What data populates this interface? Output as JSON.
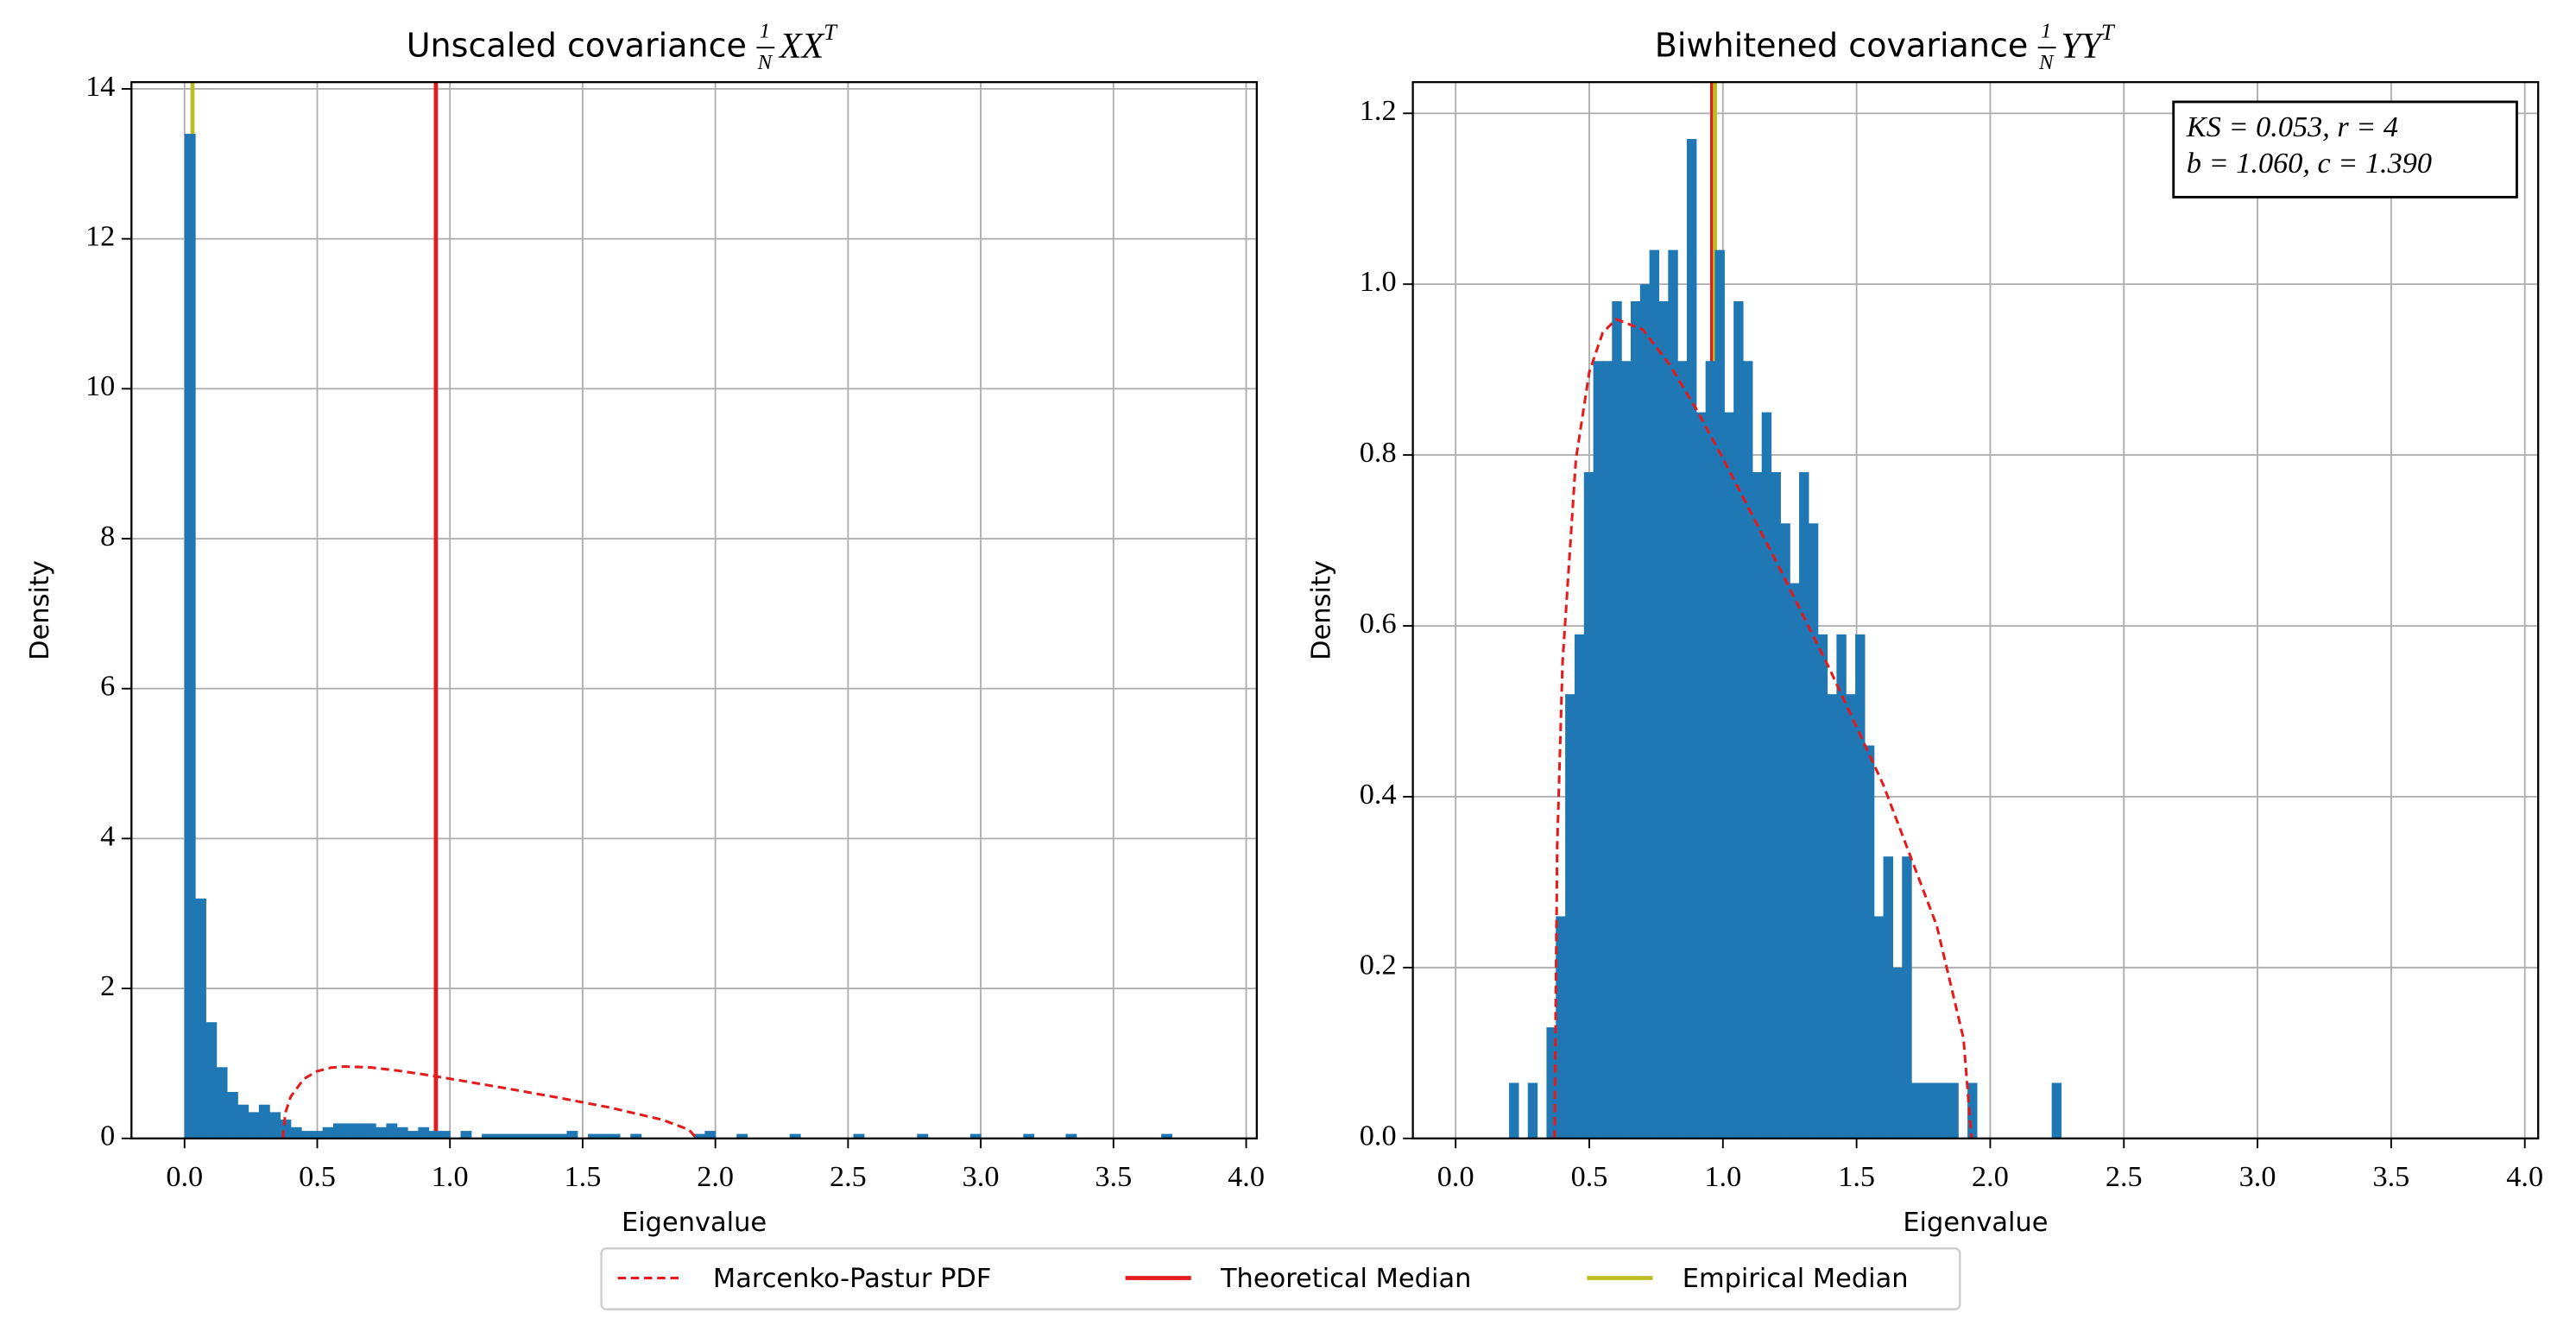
{
  "chart_data": [
    {
      "type": "histogram",
      "title": "Unscaled covariance",
      "title_math": {
        "num": "1",
        "den": "N",
        "expr": "XX",
        "sup": "T"
      },
      "x_label": "Eigenvalue",
      "y_label": "Density",
      "color": "#1f77b4",
      "xlim": [
        -0.2,
        4.04
      ],
      "ylim": [
        0,
        14.09
      ],
      "xticks": [
        {
          "value": 0,
          "label": "0.0"
        },
        0.5,
        {
          "value": 1,
          "label": "1.0"
        },
        1.5,
        {
          "value": 2,
          "label": "2.0"
        },
        2.5,
        {
          "value": 3,
          "label": "3.0"
        },
        3.5,
        {
          "value": 4,
          "label": "4.0"
        }
      ],
      "yticks": [
        0,
        2,
        4,
        6,
        8,
        10,
        12,
        14
      ],
      "grid": true,
      "bins": [
        0,
        0.04,
        0.08,
        0.12,
        0.16,
        0.2,
        0.24,
        0.28,
        0.32,
        0.36,
        0.4,
        0.44,
        0.48,
        0.52,
        0.56,
        0.6,
        0.64,
        0.68,
        0.72,
        0.76,
        0.8,
        0.84,
        0.88,
        0.92,
        0.96,
        1,
        1.04,
        1.08,
        1.12,
        1.16,
        1.2,
        1.24,
        1.28,
        1.32,
        1.36,
        1.4,
        1.44,
        1.48,
        1.52,
        1.56,
        1.6,
        1.64,
        1.68,
        1.72,
        1.76,
        1.8,
        1.84,
        1.88,
        1.92,
        1.96,
        2,
        2.04,
        2.08,
        2.12,
        2.16,
        2.2,
        2.24,
        2.28,
        2.32,
        2.36,
        2.4,
        2.44,
        2.48,
        2.52,
        2.56,
        2.6,
        2.64,
        2.68,
        2.72,
        2.76,
        2.8,
        2.84,
        2.88,
        2.92,
        2.96,
        3,
        3.04,
        3.08,
        3.12,
        3.16,
        3.2,
        3.24,
        3.28,
        3.32,
        3.36,
        3.4,
        3.44,
        3.48,
        3.52,
        3.56,
        3.6,
        3.64,
        3.68,
        3.72,
        3.76
      ],
      "counts": [
        13.4,
        3.2,
        1.55,
        0.95,
        0.62,
        0.45,
        0.35,
        0.45,
        0.35,
        0.25,
        0.15,
        0.1,
        0.1,
        0.15,
        0.2,
        0.2,
        0.2,
        0.2,
        0.15,
        0.2,
        0.15,
        0.1,
        0.15,
        0.1,
        0.1,
        0,
        0.1,
        0,
        0.06,
        0.06,
        0.06,
        0.06,
        0.06,
        0.06,
        0.06,
        0.06,
        0.1,
        0,
        0.06,
        0.06,
        0.06,
        0,
        0.06,
        0,
        0,
        0,
        0,
        0,
        0.06,
        0.1,
        0,
        0,
        0.06,
        0,
        0,
        0,
        0,
        0.06,
        0,
        0,
        0,
        0,
        0,
        0.06,
        0,
        0,
        0,
        0,
        0,
        0.06,
        0,
        0,
        0,
        0,
        0.06,
        0,
        0,
        0,
        0,
        0.06,
        0,
        0,
        0,
        0.06,
        0,
        0,
        0,
        0,
        0,
        0,
        0,
        0,
        0.06,
        0
      ],
      "curve": {
        "x": [
          0.37,
          0.38,
          0.4,
          0.45,
          0.5,
          0.55,
          0.6,
          0.7,
          0.8,
          0.9,
          1,
          1.2,
          1.4,
          1.6,
          1.8,
          1.9,
          1.93
        ],
        "y": [
          0,
          0.341,
          0.557,
          0.795,
          0.897,
          0.943,
          0.959,
          0.947,
          0.906,
          0.854,
          0.796,
          0.675,
          0.549,
          0.414,
          0.249,
          0.117,
          0
        ]
      },
      "theoretical_median": 0.947,
      "empirical_median": 0.03
    },
    {
      "type": "histogram",
      "title": "Biwhitened covariance",
      "title_math": {
        "num": "1",
        "den": "N",
        "expr": "YY",
        "sup": "T"
      },
      "x_label": "Eigenvalue",
      "y_label": "Density",
      "color": "#1f77b4",
      "xlim": [
        -0.16,
        4.05
      ],
      "ylim": [
        0,
        1.2365
      ],
      "xticks": [
        {
          "value": 0,
          "label": "0.0"
        },
        0.5,
        {
          "value": 1,
          "label": "1.0"
        },
        1.5,
        {
          "value": 2,
          "label": "2.0"
        },
        2.5,
        {
          "value": 3,
          "label": "3.0"
        },
        3.5,
        {
          "value": 4,
          "label": "4.0"
        }
      ],
      "yticks": [
        {
          "value": 0,
          "label": "0.0"
        },
        0.2,
        0.4,
        0.6,
        0.8,
        {
          "value": 1,
          "label": "1.0"
        },
        1.2
      ],
      "grid": true,
      "bins": [
        0.2,
        0.235,
        0.27,
        0.305,
        0.34,
        0.375,
        0.41,
        0.445,
        0.48,
        0.515,
        0.55,
        0.585,
        0.62,
        0.655,
        0.69,
        0.725,
        0.76,
        0.795,
        0.83,
        0.865,
        0.9,
        0.935,
        0.97,
        1.005,
        1.04,
        1.075,
        1.11,
        1.145,
        1.18,
        1.215,
        1.25,
        1.285,
        1.32,
        1.355,
        1.39,
        1.425,
        1.46,
        1.495,
        1.53,
        1.565,
        1.6,
        1.635,
        1.67,
        1.705,
        1.74,
        1.775,
        1.81,
        1.845,
        1.88,
        1.915,
        1.95,
        1.985,
        2.02,
        2.055,
        2.09,
        2.125,
        2.16,
        2.195,
        2.23,
        2.265,
        2.3
      ],
      "counts": [
        0.065,
        0,
        0.065,
        0,
        0.13,
        0.26,
        0.52,
        0.59,
        0.78,
        0.91,
        0.91,
        0.98,
        0.91,
        0.98,
        1.0,
        1.04,
        0.98,
        1.04,
        0.91,
        1.17,
        0.85,
        0.91,
        1.04,
        0.85,
        0.98,
        0.91,
        0.78,
        0.85,
        0.78,
        0.72,
        0.65,
        0.78,
        0.72,
        0.59,
        0.52,
        0.59,
        0.52,
        0.59,
        0.46,
        0.26,
        0.33,
        0.2,
        0.33,
        0.065,
        0.065,
        0.065,
        0.065,
        0.065,
        0,
        0.065,
        0,
        0,
        0,
        0,
        0,
        0,
        0,
        0,
        0.065,
        0
      ],
      "curve": {
        "x": [
          0.37,
          0.38,
          0.4,
          0.45,
          0.5,
          0.55,
          0.6,
          0.7,
          0.8,
          0.9,
          1,
          1.2,
          1.4,
          1.6,
          1.8,
          1.9,
          1.93
        ],
        "y": [
          0,
          0.341,
          0.557,
          0.795,
          0.897,
          0.943,
          0.959,
          0.947,
          0.906,
          0.854,
          0.796,
          0.675,
          0.549,
          0.414,
          0.249,
          0.117,
          0
        ]
      },
      "theoretical_median": 0.96,
      "empirical_median": 0.97,
      "annotation": [
        "KS = 0.053,  r = 4",
        "b = 1.060,  c = 1.390"
      ]
    }
  ],
  "legend": [
    {
      "name": "Marcenko-Pastur PDF",
      "color": "#e41a1c",
      "dashed": true
    },
    {
      "name": "Theoretical Median",
      "color": "#e41a1c",
      "dashed": false
    },
    {
      "name": "Empirical Median",
      "color": "#bcbd22",
      "dashed": false
    }
  ]
}
